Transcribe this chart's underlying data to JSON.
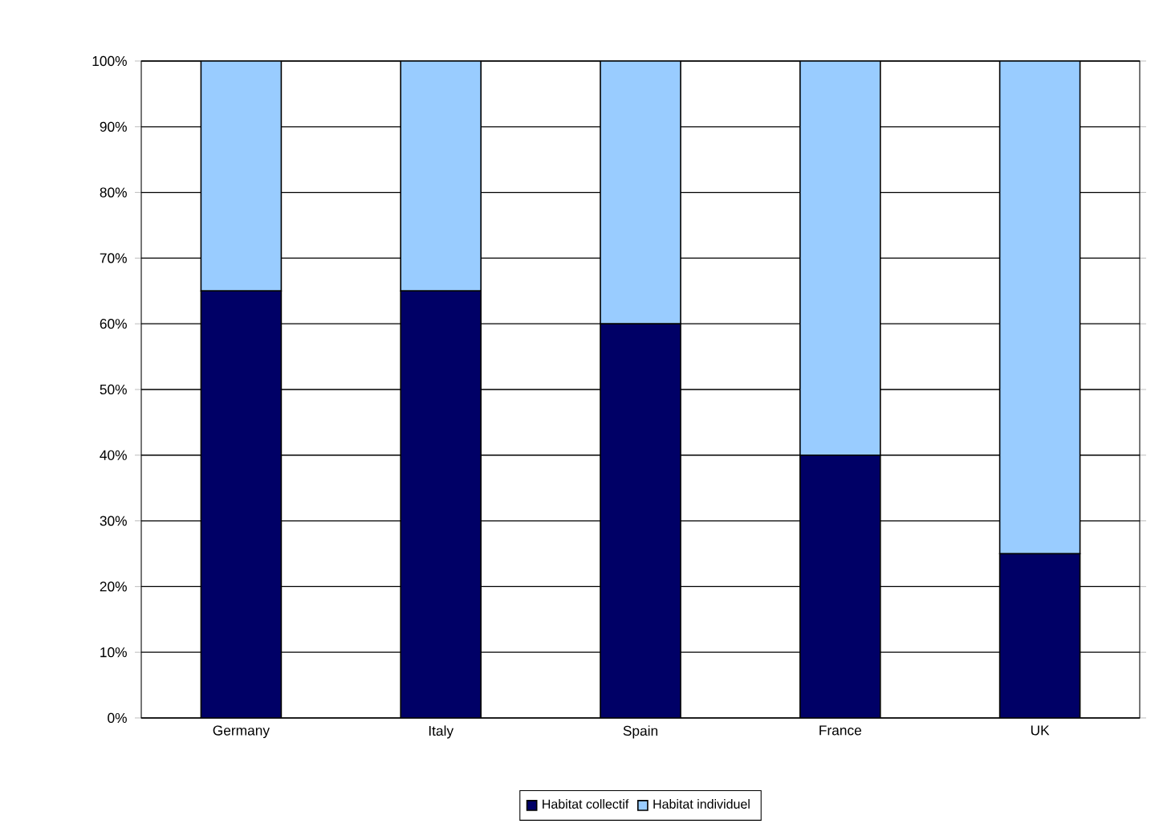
{
  "chart_data": {
    "type": "bar",
    "stacked": true,
    "categories": [
      "Germany",
      "Italy",
      "Spain",
      "France",
      "UK"
    ],
    "series": [
      {
        "name": "Habitat collectif",
        "color": "#000066",
        "values": [
          65,
          65,
          60,
          40,
          25
        ]
      },
      {
        "name": "Habitat individuel",
        "color": "#99ccff",
        "values": [
          35,
          35,
          40,
          60,
          75
        ]
      }
    ],
    "ylim": [
      0,
      100
    ],
    "yticks": [
      {
        "value": 0,
        "label": "0%"
      },
      {
        "value": 10,
        "label": "10%"
      },
      {
        "value": 20,
        "label": "20%"
      },
      {
        "value": 30,
        "label": "30%"
      },
      {
        "value": 40,
        "label": "40%"
      },
      {
        "value": 50,
        "label": "50%"
      },
      {
        "value": 60,
        "label": "60%"
      },
      {
        "value": 70,
        "label": "70%"
      },
      {
        "value": 80,
        "label": "80%"
      },
      {
        "value": 90,
        "label": "90%"
      },
      {
        "value": 100,
        "label": "100%"
      }
    ],
    "grid": "y",
    "legend": "bottom"
  }
}
